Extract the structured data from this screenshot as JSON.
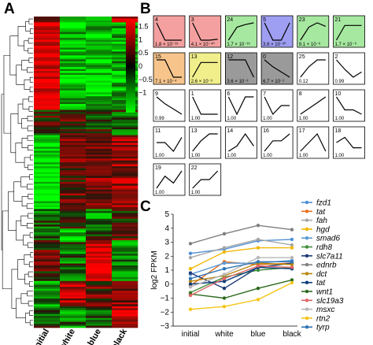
{
  "panels": {
    "a": "A",
    "b": "B",
    "c": "C"
  },
  "heatmap": {
    "columns": [
      "initial",
      "white",
      "blue",
      "black"
    ],
    "colorbar_ticks": [
      "1.5",
      "1",
      "0.5",
      "0",
      "−0.5",
      "−1"
    ],
    "colorbar_tick_values": [
      1.5,
      1.0,
      0.5,
      0.0,
      -0.5,
      -1.0
    ],
    "colors": {
      "high": "#ff0000",
      "mid": "#000000",
      "low": "#00ff00"
    }
  },
  "clusters": [
    {
      "id": "4",
      "p": "1.8 × 10⁻¹⁵",
      "color": "#f4a0a0",
      "profile": [
        1,
        0,
        0,
        0
      ]
    },
    {
      "id": "3",
      "p": "4.1 × 10⁻⁴⁰",
      "color": "#f4a0a0",
      "profile": [
        1,
        0,
        0,
        0.05
      ]
    },
    {
      "id": "24",
      "p": "1.7 × 10⁻¹⁶",
      "color": "#a6e8a0",
      "profile": [
        0,
        0.75,
        0.9,
        1
      ]
    },
    {
      "id": "5",
      "p": "3.8 × 10⁻²⁰",
      "color": "#9e9ef2",
      "profile": [
        1,
        0,
        0,
        1
      ]
    },
    {
      "id": "23",
      "p": "9.1 × 10⁻⁸",
      "color": "#a6e8a0",
      "profile": [
        0,
        0.75,
        1,
        0.8
      ]
    },
    {
      "id": "21",
      "p": "1.7 × 10⁻⁹",
      "color": "#a6e8a0",
      "profile": [
        0,
        0.85,
        0.85,
        0.85
      ]
    },
    {
      "id": "15",
      "p": "7.1 × 10⁻⁴",
      "color": "#f7c58c",
      "profile": [
        1,
        1,
        0,
        0
      ]
    },
    {
      "id": "13",
      "p": "2.6 × 10⁻³",
      "color": "#f1ef8c",
      "profile": [
        0,
        0.85,
        0.85,
        0.85
      ]
    },
    {
      "id": "12",
      "p": "3.6 × 10⁻³",
      "color": "#9a9a9a",
      "profile": [
        1,
        1,
        1,
        0
      ]
    },
    {
      "id": "0",
      "p": "6.7 × 10⁻¹",
      "color": "#9a9a9a",
      "profile": [
        1,
        0.6,
        0.3,
        0
      ]
    },
    {
      "id": "25",
      "p": "0.12",
      "color": "#ffffff",
      "profile": [
        0,
        0.6,
        1,
        1
      ]
    },
    {
      "id": "2",
      "p": "0.99",
      "color": "#ffffff",
      "profile": [
        1,
        0.45,
        0,
        0.3
      ]
    },
    {
      "id": "9",
      "p": "0.99",
      "color": "#ffffff",
      "profile": [
        1,
        0.6,
        0.3,
        0
      ]
    },
    {
      "id": "1",
      "p": "1.00",
      "color": "#ffffff",
      "profile": [
        1,
        0,
        0,
        0
      ]
    },
    {
      "id": "6",
      "p": "1.00",
      "color": "#ffffff",
      "profile": [
        1,
        0,
        1,
        1
      ]
    },
    {
      "id": "7",
      "p": "1.00",
      "color": "#ffffff",
      "profile": [
        1,
        0,
        0.5,
        0.5
      ]
    },
    {
      "id": "8",
      "p": "1.00",
      "color": "#ffffff",
      "profile": [
        0,
        0.33,
        0.66,
        1
      ]
    },
    {
      "id": "10",
      "p": "1.00",
      "color": "#ffffff",
      "profile": [
        1,
        0.25,
        0.25,
        0
      ]
    },
    {
      "id": "11",
      "p": "1.00",
      "color": "#ffffff",
      "profile": [
        0.5,
        0.5,
        0,
        0.8
      ]
    },
    {
      "id": "13",
      "p": "1.00",
      "color": "#ffffff",
      "profile": [
        0,
        0.6,
        1,
        1
      ]
    },
    {
      "id": "14",
      "p": "1.00",
      "color": "#ffffff",
      "profile": [
        0,
        0.3,
        1,
        0.3
      ]
    },
    {
      "id": "16",
      "p": "1.00",
      "color": "#ffffff",
      "profile": [
        0,
        0.6,
        0.6,
        1
      ]
    },
    {
      "id": "17",
      "p": "1.00",
      "color": "#ffffff",
      "profile": [
        0,
        0.5,
        1,
        0
      ]
    },
    {
      "id": "18",
      "p": "1.00",
      "color": "#ffffff",
      "profile": [
        0.5,
        0.8,
        0.2,
        0.2
      ]
    },
    {
      "id": "19",
      "p": "1.00",
      "color": "#ffffff",
      "profile": [
        0,
        0.7,
        0.3,
        1
      ]
    },
    {
      "id": "22",
      "p": "1.00",
      "color": "#ffffff",
      "profile": [
        0,
        0.5,
        0.5,
        1
      ]
    }
  ],
  "chart_data": {
    "type": "line",
    "title": "",
    "xlabel": "",
    "ylabel": "log2 FPKM",
    "categories": [
      "initial",
      "white",
      "blue",
      "black"
    ],
    "ylim": [
      -3,
      5
    ],
    "yticks": [
      "−3",
      "−2",
      "−1",
      "0",
      "1",
      "2",
      "3",
      "4",
      "5"
    ],
    "ytick_values": [
      -3,
      -2,
      -1,
      0,
      1,
      2,
      3,
      4,
      5
    ],
    "grid": false,
    "legend": "right",
    "series": [
      {
        "name": "fzd1",
        "color": "#4f8fd6",
        "values": [
          2.2,
          2.5,
          3.1,
          3.2
        ]
      },
      {
        "name": "tat",
        "color": "#e8701e",
        "values": [
          -0.1,
          1.6,
          1.4,
          1.5
        ]
      },
      {
        "name": "fah",
        "color": "#a6a6a6",
        "values": [
          1.9,
          2.6,
          3.2,
          2.8
        ]
      },
      {
        "name": "hgd",
        "color": "#f2b705",
        "values": [
          1.1,
          2.3,
          2.6,
          2.6
        ]
      },
      {
        "name": "smad6",
        "color": "#5b9bd5",
        "values": [
          0.7,
          1.5,
          1.5,
          1.7
        ]
      },
      {
        "name": "rdh8",
        "color": "#3f8e3a",
        "values": [
          -0.6,
          0.5,
          1.0,
          1.2
        ]
      },
      {
        "name": "slc7a11",
        "color": "#1e3a78",
        "values": [
          0.8,
          -0.3,
          1.2,
          1.5
        ]
      },
      {
        "name": "ednrb",
        "color": "#7f7f7f",
        "values": [
          2.9,
          3.6,
          4.2,
          3.9
        ]
      },
      {
        "name": "dct",
        "color": "#b8860b",
        "values": [
          0.2,
          0.6,
          1.5,
          1.4
        ]
      },
      {
        "name": "tat",
        "color": "#0b3c7a",
        "values": [
          0.0,
          0.2,
          1.2,
          1.1
        ]
      },
      {
        "name": "wnt1",
        "color": "#2d6a1e",
        "values": [
          -0.7,
          -1.0,
          -0.3,
          0.3
        ]
      },
      {
        "name": "slc19a3",
        "color": "#e06666",
        "values": [
          -0.8,
          0.4,
          1.3,
          1.2
        ]
      },
      {
        "name": "msxc",
        "color": "#b7b7b7",
        "values": [
          -0.2,
          0.7,
          1.9,
          1.9
        ]
      },
      {
        "name": "rtn2",
        "color": "#f5c518",
        "values": [
          -1.8,
          -1.6,
          -1.1,
          0.1
        ]
      },
      {
        "name": "tyrp",
        "color": "#2e75b6",
        "values": [
          0.4,
          1.1,
          1.6,
          1.6
        ]
      }
    ]
  }
}
